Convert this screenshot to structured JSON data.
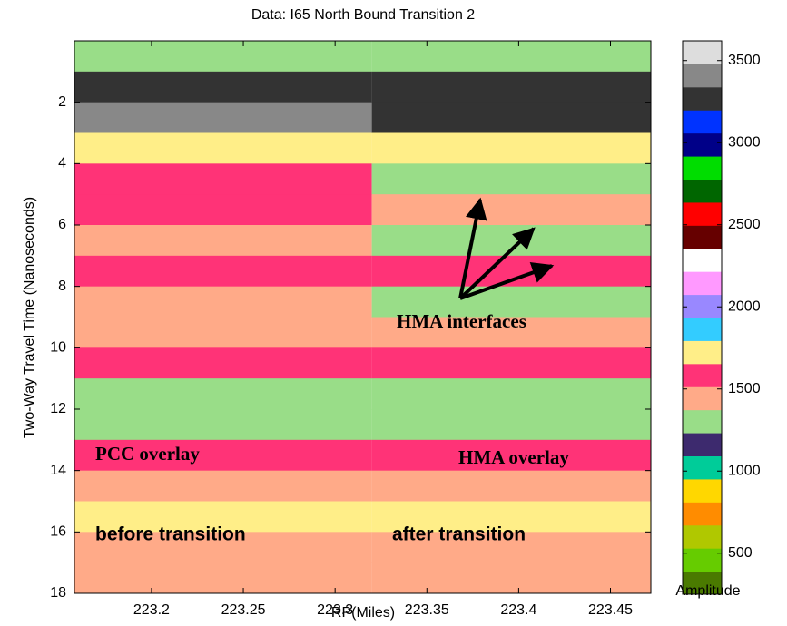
{
  "chart_data": {
    "type": "heatmap",
    "title": "Data:  I65 North Bound Transition 2",
    "x_label": "RP(Miles)",
    "y_label": "Two-Way Travel Time (Nanoseconds)",
    "colorbar_label": "Amplitude",
    "x_edges": [
      223.158,
      223.32,
      223.472
    ],
    "y_edges": [
      0,
      1,
      2,
      3,
      4,
      5,
      6,
      7,
      8,
      9,
      10,
      11,
      12,
      13,
      14,
      15,
      16,
      17,
      18
    ],
    "z": [
      [
        1300,
        1300
      ],
      [
        3250,
        3250
      ],
      [
        3400,
        3200
      ],
      [
        1700,
        1700
      ],
      [
        1550,
        1300
      ],
      [
        1550,
        1450
      ],
      [
        1450,
        1300
      ],
      [
        1550,
        1550
      ],
      [
        1450,
        1300
      ],
      [
        1450,
        1450
      ],
      [
        1550,
        1550
      ],
      [
        1300,
        1300
      ],
      [
        1300,
        1300
      ],
      [
        1550,
        1550
      ],
      [
        1450,
        1450
      ],
      [
        1700,
        1700
      ],
      [
        1450,
        1450
      ],
      [
        1450,
        1450
      ]
    ],
    "xlim": [
      223.158,
      223.472
    ],
    "ylim": [
      0,
      18
    ],
    "y_reversed": true,
    "xticks": [
      223.2,
      223.25,
      223.3,
      223.35,
      223.4,
      223.45
    ],
    "yticks": [
      2,
      4,
      6,
      8,
      10,
      12,
      14,
      16,
      18
    ],
    "clim": [
      250,
      3620
    ],
    "cticks": [
      500,
      1000,
      1500,
      2000,
      2500,
      3000,
      3500
    ],
    "colormap": [
      "#4a7a00",
      "#66cc00",
      "#b0c800",
      "#ff8c00",
      "#ffd700",
      "#00cc99",
      "#3d2a6e",
      "#99dd88",
      "#ffaa88",
      "#ff3377",
      "#ffee88",
      "#33ccff",
      "#9988ff",
      "#ff99ff",
      "#ffffff",
      "#660000",
      "#ff0000",
      "#006600",
      "#00dd00",
      "#000088",
      "#0033ff",
      "#333333",
      "#888888",
      "#dddddd"
    ],
    "annotations": [
      "HMA interfaces",
      "PCC overlay",
      "HMA overlay",
      "before transition",
      "after transition"
    ]
  }
}
